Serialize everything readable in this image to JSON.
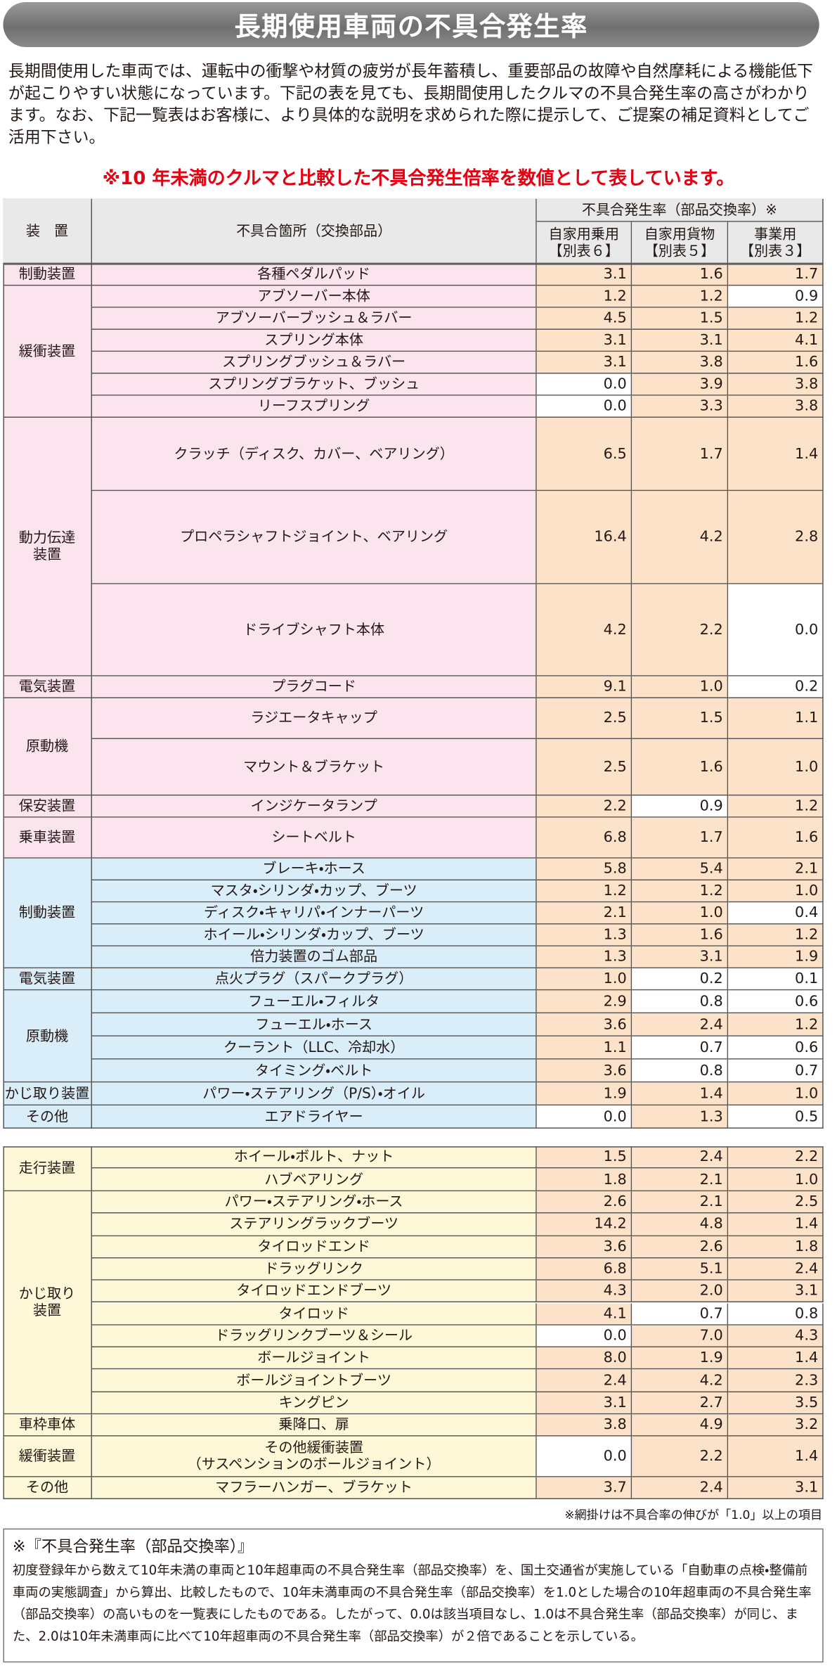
{
  "header": {
    "title": "長期使用車両の不具合発生率"
  },
  "intro": "長期間使用した車両では、運転中の衝撃や材質の疲労が長年蓄積し、重要部品の故障や自然摩耗による機能低下が起こりやすい状態になっています。下記の表を見ても、長期間使用したクルマの不具合発生率の高さがわかります。なお、下記一覧表はお客様に、より具体的な説明を求められた際に提示して、ご提案の補足資料としてご活用下さい。",
  "notice": "※10 年未満のクルマと比較した不具合発生倍率を数値として表しています。",
  "table_header": {
    "device": "装　置",
    "part": "不具合箇所（交換部品）",
    "rate": "不具合発生率（部品交換率）※",
    "columns": [
      [
        "自家用乗用",
        "【別表６】"
      ],
      [
        "自家用貨物",
        "【別表５】"
      ],
      [
        "事業用",
        "【別表３】"
      ]
    ]
  },
  "highlight": {
    "color": "#fbe2c8",
    "min": 1.0
  },
  "tables": [
    {
      "groups": [
        {
          "device": "制動装置",
          "color": "#fbe4ee",
          "rows": [
            {
              "part": "各種ペダルパッド",
              "values": [
                "3.1",
                "1.6",
                "1.7"
              ]
            }
          ]
        },
        {
          "device": "緩衝装置",
          "color": "#fbe4ee",
          "rows": [
            {
              "part": "アブソーバー本体",
              "values": [
                "1.2",
                "1.2",
                "0.9"
              ]
            },
            {
              "part": "アブソーバーブッシュ＆ラバー",
              "values": [
                "4.5",
                "1.5",
                "1.2"
              ]
            },
            {
              "part": "スプリング本体",
              "values": [
                "3.1",
                "3.1",
                "4.1"
              ]
            },
            {
              "part": "スプリングブッシュ＆ラバー",
              "values": [
                "3.1",
                "3.8",
                "1.6"
              ]
            },
            {
              "part": "スプリングブラケット、ブッシュ",
              "values": [
                "0.0",
                "3.9",
                "3.8"
              ]
            },
            {
              "part": "リーフスプリング",
              "values": [
                "0.0",
                "3.3",
                "3.8"
              ]
            }
          ]
        },
        {
          "device": [
            "動力伝達",
            "装置"
          ],
          "color": "#fbe4ee",
          "rows": [
            {
              "part": "クラッチ（ディスク、カバー、ベアリング）",
              "values": [
                "6.5",
                "1.7",
                "1.4"
              ]
            },
            {
              "part": "プロペラシャフトジョイント、ベアリング",
              "values": [
                "16.4",
                "4.2",
                "2.8"
              ]
            },
            {
              "part": "ドライブシャフト本体",
              "values": [
                "4.2",
                "2.2",
                "0.0"
              ]
            }
          ]
        },
        {
          "device": "電気装置",
          "color": "#fbe4ee",
          "rows": [
            {
              "part": "プラグコード",
              "values": [
                "9.1",
                "1.0",
                "0.2"
              ]
            }
          ]
        },
        {
          "device": "原動機",
          "color": "#fbe4ee",
          "rows": [
            {
              "part": "ラジエータキャップ",
              "values": [
                "2.5",
                "1.5",
                "1.1"
              ]
            },
            {
              "part": "マウント＆ブラケット",
              "values": [
                "2.5",
                "1.6",
                "1.0"
              ]
            }
          ]
        },
        {
          "device": "保安装置",
          "color": "#fbe4ee",
          "rows": [
            {
              "part": "インジケータランプ",
              "values": [
                "2.2",
                "0.9",
                "1.2"
              ]
            }
          ]
        },
        {
          "device": "乗車装置",
          "color": "#fbe4ee",
          "rows": [
            {
              "part": "シートベルト",
              "values": [
                "6.8",
                "1.7",
                "1.6"
              ]
            }
          ]
        },
        {
          "device": "制動装置",
          "color": "#daeef9",
          "rows": [
            {
              "part": "ブレーキ・ホース",
              "values": [
                "5.8",
                "5.4",
                "2.1"
              ]
            },
            {
              "part": "マスタ・シリンダ・カップ、ブーツ",
              "values": [
                "1.2",
                "1.2",
                "1.0"
              ]
            },
            {
              "part": "ディスク・キャリパ・インナーパーツ",
              "values": [
                "2.1",
                "1.0",
                "0.4"
              ]
            },
            {
              "part": "ホイール・シリンダ・カップ、ブーツ",
              "values": [
                "1.3",
                "1.6",
                "1.2"
              ]
            },
            {
              "part": "倍力装置のゴム部品",
              "values": [
                "1.3",
                "3.1",
                "1.9"
              ]
            }
          ]
        },
        {
          "device": "電気装置",
          "color": "#daeef9",
          "rows": [
            {
              "part": "点火プラグ（スパークプラグ）",
              "values": [
                "1.0",
                "0.2",
                "0.1"
              ]
            }
          ]
        },
        {
          "device": "原動機",
          "color": "#daeef9",
          "rows": [
            {
              "part": "フューエル・フィルタ",
              "values": [
                "2.9",
                "0.8",
                "0.6"
              ]
            },
            {
              "part": "フューエル・ホース",
              "values": [
                "3.6",
                "2.4",
                "1.2"
              ]
            },
            {
              "part": "クーラント（LLC、冷却水）",
              "values": [
                "1.1",
                "0.7",
                "0.6"
              ]
            },
            {
              "part": "タイミング・ベルト",
              "values": [
                "3.6",
                "0.8",
                "0.7"
              ]
            }
          ]
        },
        {
          "device": "かじ取り装置",
          "color": "#daeef9",
          "rows": [
            {
              "part": "パワー・ステアリング（P/S）・オイル",
              "values": [
                "1.9",
                "1.4",
                "1.0"
              ]
            }
          ]
        },
        {
          "device": "その他",
          "color": "#daeef9",
          "rows": [
            {
              "part": "エアドライヤー",
              "values": [
                "0.0",
                "1.3",
                "0.5"
              ]
            }
          ]
        }
      ]
    },
    {
      "groups": [
        {
          "device": "走行装置",
          "color": "#fdf8d8",
          "rows": [
            {
              "part": "ホイール・ボルト、ナット",
              "values": [
                "1.5",
                "2.4",
                "2.2"
              ]
            },
            {
              "part": "ハブベアリング",
              "values": [
                "1.8",
                "2.1",
                "1.0"
              ]
            }
          ]
        },
        {
          "device": [
            "かじ取り",
            "装置"
          ],
          "color": "#fdf8d8",
          "rows": [
            {
              "part": "パワー・ステアリング・ホース",
              "values": [
                "2.6",
                "2.1",
                "2.5"
              ]
            },
            {
              "part": "ステアリングラックブーツ",
              "values": [
                "14.2",
                "4.8",
                "1.4"
              ]
            },
            {
              "part": "タイロッドエンド",
              "values": [
                "3.6",
                "2.6",
                "1.8"
              ]
            },
            {
              "part": "ドラッグリンク",
              "values": [
                "6.8",
                "5.1",
                "2.4"
              ]
            },
            {
              "part": "タイロッドエンドブーツ",
              "values": [
                "4.3",
                "2.0",
                "3.1"
              ]
            },
            {
              "part": "タイロッド",
              "values": [
                "4.1",
                "0.7",
                "0.8"
              ]
            },
            {
              "part": "ドラッグリンクブーツ＆シール",
              "values": [
                "0.0",
                "7.0",
                "4.3"
              ]
            },
            {
              "part": "ボールジョイント",
              "values": [
                "8.0",
                "1.9",
                "1.4"
              ]
            },
            {
              "part": "ボールジョイントブーツ",
              "values": [
                "2.4",
                "4.2",
                "2.3"
              ]
            },
            {
              "part": "キングピン",
              "values": [
                "3.1",
                "2.7",
                "3.5"
              ]
            }
          ]
        },
        {
          "device": "車枠車体",
          "color": "#fdf8d8",
          "rows": [
            {
              "part": "乗降口、扉",
              "values": [
                "3.8",
                "4.9",
                "3.2"
              ]
            }
          ]
        },
        {
          "device": "緩衝装置",
          "color": "#fdf8d8",
          "rows": [
            {
              "part": [
                "その他緩衝装置",
                "（サスペンションのボールジョイント）"
              ],
              "values": [
                "0.0",
                "2.2",
                "1.4"
              ]
            }
          ]
        },
        {
          "device": "その他",
          "color": "#fdf8d8",
          "rows": [
            {
              "part": "マフラーハンガー、ブラケット",
              "values": [
                "3.7",
                "2.4",
                "3.1"
              ]
            }
          ]
        }
      ]
    }
  ],
  "table_note": "※網掛けは不具合率の伸びが「1.0」以上の項目",
  "footnote": {
    "title": "※『不具合発生率（部品交換率）』",
    "body": "初度登録年から数えて10年未満の車両と10年超車両の不具合発生率（部品交換率）を、国土交通省が実施している「自動車の点検・整備前車両の実態調査」から算出、比較したもので、10年未満車両の不具合発生率（部品交換率）を1.0とした場合の10年超車両の不具合発生率（部品交換率）の高いものを一覧表にしたものである。したがって、0.0は該当項目なし、1.0は不具合発生率（部品交換率）が同じ、また、2.0は10年未満車両に比べて10年超車両の不具合発生率（部品交換率）が２倍であることを示している。"
  }
}
